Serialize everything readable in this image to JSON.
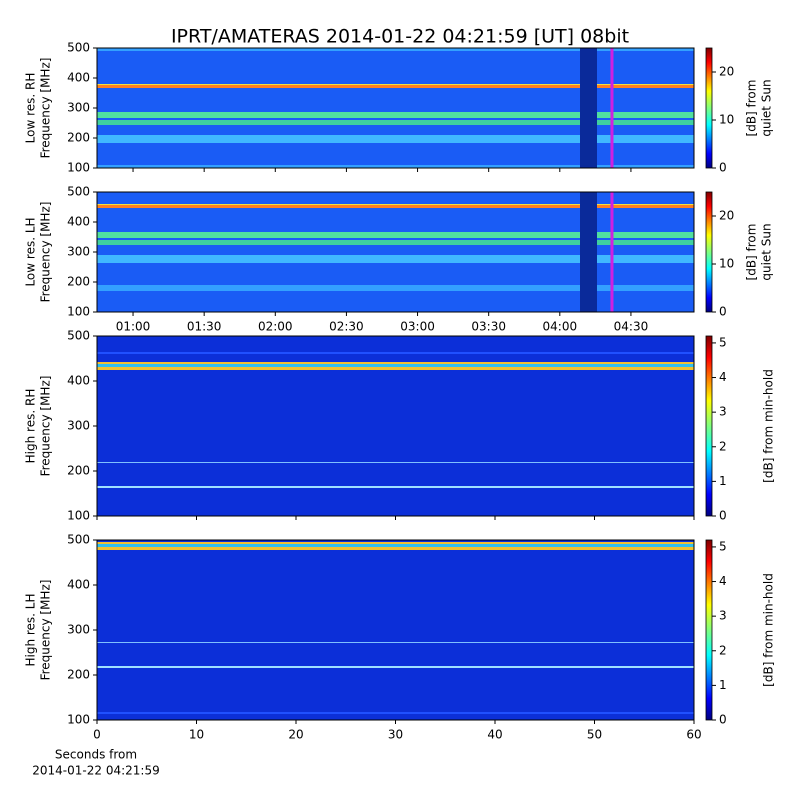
{
  "chart_data": [
    {
      "type": "heatmap",
      "title": "IPRT/AMATERAS 2014-01-22 04:21:59 [UT]   08bit",
      "ylabel": [
        "Low res. RH",
        "Frequency [MHz]"
      ],
      "ylim": [
        100,
        500
      ],
      "yticks": [
        100,
        200,
        300,
        400,
        500
      ],
      "xlim": [
        44.8,
        296.6
      ],
      "xticks": [
        {
          "value": 60,
          "label": "01:00"
        },
        {
          "value": 90,
          "label": "01:30"
        },
        {
          "value": 120,
          "label": "02:00"
        },
        {
          "value": 150,
          "label": "02:30"
        },
        {
          "value": 180,
          "label": "03:00"
        },
        {
          "value": 210,
          "label": "03:30"
        },
        {
          "value": 240,
          "label": "04:00"
        },
        {
          "value": 270,
          "label": "04:30"
        }
      ],
      "show_xtick_labels": false,
      "marker_x": 262,
      "marker_color": "#d020e0",
      "clabel": [
        "[dB] from",
        "quiet Sun"
      ],
      "clim": [
        0,
        25
      ],
      "cticks": [
        0,
        10,
        20
      ]
    },
    {
      "type": "heatmap",
      "ylabel": [
        "Low res. LH",
        "Frequency [MHz]"
      ],
      "ylim": [
        100,
        500
      ],
      "yticks": [
        100,
        200,
        300,
        400,
        500
      ],
      "xlim": [
        44.8,
        296.6
      ],
      "xticks": [
        {
          "value": 60,
          "label": "01:00"
        },
        {
          "value": 90,
          "label": "01:30"
        },
        {
          "value": 120,
          "label": "02:00"
        },
        {
          "value": 150,
          "label": "02:30"
        },
        {
          "value": 180,
          "label": "03:00"
        },
        {
          "value": 210,
          "label": "03:30"
        },
        {
          "value": 240,
          "label": "04:00"
        },
        {
          "value": 270,
          "label": "04:30"
        }
      ],
      "show_xtick_labels": true,
      "marker_x": 262,
      "marker_color": "#d020e0",
      "clabel": [
        "[dB] from",
        "quiet Sun"
      ],
      "clim": [
        0,
        25
      ],
      "cticks": [
        0,
        10,
        20
      ]
    },
    {
      "type": "heatmap",
      "ylabel": [
        "High res. RH",
        "Frequency [MHz]"
      ],
      "ylim": [
        100,
        500
      ],
      "yticks": [
        100,
        200,
        300,
        400,
        500
      ],
      "xlim": [
        0,
        60
      ],
      "xticks": [
        0,
        10,
        20,
        30,
        40,
        50,
        60
      ],
      "show_xtick_labels": false,
      "clabel": [
        "[dB] from min-hold"
      ],
      "clim": [
        0,
        5.2
      ],
      "cticks": [
        0,
        1,
        2,
        3,
        4,
        5
      ]
    },
    {
      "type": "heatmap",
      "ylabel": [
        "High res. LH",
        "Frequency [MHz]"
      ],
      "ylim": [
        100,
        500
      ],
      "yticks": [
        100,
        200,
        300,
        400,
        500
      ],
      "xlim": [
        0,
        60
      ],
      "xticks": [
        0,
        10,
        20,
        30,
        40,
        50,
        60
      ],
      "show_xtick_labels": true,
      "xlabel": [
        "Seconds from",
        "2014-01-22 04:21:59"
      ],
      "clabel": [
        "[dB] from min-hold"
      ],
      "clim": [
        0,
        5.2
      ],
      "cticks": [
        0,
        1,
        2,
        3,
        4,
        5
      ]
    }
  ]
}
